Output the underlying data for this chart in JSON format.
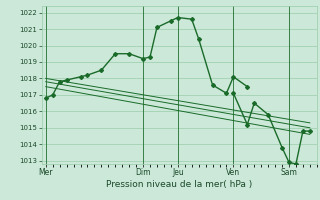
{
  "background_color": "#cce8d8",
  "grid_color": "#99ccaa",
  "line_color": "#1a6b2a",
  "title": "Pression niveau de la mer( hPa )",
  "ylabel_ticks": [
    1013,
    1014,
    1015,
    1016,
    1017,
    1018,
    1019,
    1020,
    1021,
    1022
  ],
  "ylim": [
    1012.8,
    1022.4
  ],
  "x_day_labels": [
    "Mer",
    "Dim",
    "Jeu",
    "Ven",
    "Sam"
  ],
  "x_day_positions": [
    0,
    7,
    9.5,
    13.5,
    17.5
  ],
  "xlim": [
    -0.3,
    19.5
  ],
  "main_line": {
    "x": [
      0,
      0.5,
      1,
      1.5,
      2.5,
      3,
      4,
      5,
      6,
      7,
      7.5,
      8,
      9,
      9.5,
      10.5,
      11,
      12,
      13,
      13.5,
      14.5
    ],
    "y": [
      1016.8,
      1017.0,
      1017.8,
      1017.9,
      1018.1,
      1018.2,
      1018.5,
      1019.5,
      1019.5,
      1019.2,
      1019.3,
      1021.1,
      1021.5,
      1021.7,
      1021.6,
      1020.4,
      1017.6,
      1017.1,
      1018.1,
      1017.5
    ]
  },
  "trend_line1": {
    "x": [
      0,
      19
    ],
    "y": [
      1017.8,
      1015.0
    ]
  },
  "trend_line2": {
    "x": [
      0,
      19
    ],
    "y": [
      1018.0,
      1015.3
    ]
  },
  "trend_line3": {
    "x": [
      0,
      19
    ],
    "y": [
      1017.5,
      1014.6
    ]
  },
  "lower_line": {
    "x": [
      13.5,
      14.5,
      15,
      16,
      17,
      17.5,
      18,
      18.5,
      19
    ],
    "y": [
      1017.1,
      1015.2,
      1016.5,
      1015.8,
      1013.8,
      1012.9,
      1012.8,
      1014.8,
      1014.8
    ]
  },
  "vline_positions": [
    0,
    7,
    9.5,
    13.5,
    17.5
  ]
}
